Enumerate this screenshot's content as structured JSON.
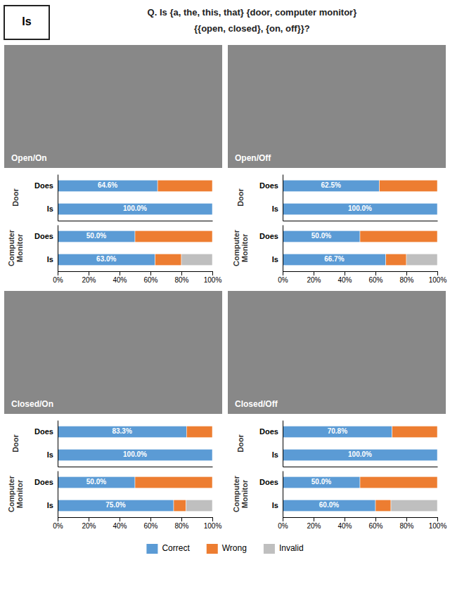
{
  "chart_data": [
    {
      "type": "bar",
      "orientation": "horizontal",
      "stacked": true,
      "data_labels": true,
      "tick_labels": "y",
      "title": "Q. Is {a, the, this, that} {door, computer monitor}\n{{open, closed}, {on, off}}?",
      "subtitle": "Is",
      "annotations": [
        "Open/On"
      ],
      "legend": "bottom",
      "y_label": "Door",
      "categories": [
        "Is",
        "Does"
      ],
      "series": [
        {
          "name": "Correct",
          "color": "#5B9BD5",
          "values": [
            100.0,
            64.6
          ],
          "value_labels": [
            "100.0%",
            "64.6%"
          ]
        },
        {
          "name": "Wrong",
          "color": "#ED7D31",
          "values": [
            0.0,
            35.4
          ]
        },
        {
          "name": "Invalid",
          "color": "#BFBFBF",
          "values": [
            0.0,
            0.0
          ]
        }
      ],
      "xlim": [
        0,
        100
      ]
    },
    {
      "type": "bar",
      "orientation": "horizontal",
      "stacked": true,
      "data_labels": true,
      "y_label": "Computer\nMonitor",
      "categories": [
        "Is",
        "Does"
      ],
      "series": [
        {
          "name": "Correct",
          "color": "#5B9BD5",
          "values": [
            63.0,
            50.0
          ],
          "value_labels": [
            "63.0%",
            "50.0%"
          ]
        },
        {
          "name": "Wrong",
          "color": "#ED7D31",
          "values": [
            17.0,
            50.0
          ]
        },
        {
          "name": "Invalid",
          "color": "#BFBFBF",
          "values": [
            20.0,
            0.0
          ]
        }
      ],
      "xlim": [
        0,
        100
      ],
      "xticks": [
        {
          "value": 0,
          "label": "0%"
        },
        {
          "value": 20,
          "label": "20%"
        },
        {
          "value": 40,
          "label": "40%"
        },
        {
          "value": 60,
          "label": "60%"
        },
        {
          "value": 80,
          "label": "80%"
        },
        {
          "value": 100,
          "label": "100%"
        }
      ]
    },
    {
      "type": "bar",
      "orientation": "horizontal",
      "stacked": true,
      "data_labels": true,
      "tick_labels": "y",
      "annotations": [
        "Open/Off"
      ],
      "y_label": "Door",
      "categories": [
        "Is",
        "Does"
      ],
      "series": [
        {
          "name": "Correct",
          "color": "#5B9BD5",
          "values": [
            100.0,
            62.5
          ],
          "value_labels": [
            "100.0%",
            "62.5%"
          ]
        },
        {
          "name": "Wrong",
          "color": "#ED7D31",
          "values": [
            0.0,
            37.5
          ]
        },
        {
          "name": "Invalid",
          "color": "#BFBFBF",
          "values": [
            0.0,
            0.0
          ]
        }
      ],
      "xlim": [
        0,
        100
      ]
    },
    {
      "type": "bar",
      "orientation": "horizontal",
      "stacked": true,
      "data_labels": true,
      "y_label": "Computer\nMonitor",
      "categories": [
        "Is",
        "Does"
      ],
      "series": [
        {
          "name": "Correct",
          "color": "#5B9BD5",
          "values": [
            66.7,
            50.0
          ],
          "value_labels": [
            "66.7%",
            "50.0%"
          ]
        },
        {
          "name": "Wrong",
          "color": "#ED7D31",
          "values": [
            13.3,
            50.0
          ]
        },
        {
          "name": "Invalid",
          "color": "#BFBFBF",
          "values": [
            20.0,
            0.0
          ]
        }
      ],
      "xlim": [
        0,
        100
      ],
      "xticks": [
        {
          "value": 0,
          "label": "0%"
        },
        {
          "value": 20,
          "label": "20%"
        },
        {
          "value": 40,
          "label": "40%"
        },
        {
          "value": 60,
          "label": "60%"
        },
        {
          "value": 80,
          "label": "80%"
        },
        {
          "value": 100,
          "label": "100%"
        }
      ]
    },
    {
      "type": "bar",
      "orientation": "horizontal",
      "stacked": true,
      "data_labels": true,
      "tick_labels": "y",
      "annotations": [
        "Closed/On"
      ],
      "y_label": "Door",
      "categories": [
        "Is",
        "Does"
      ],
      "series": [
        {
          "name": "Correct",
          "color": "#5B9BD5",
          "values": [
            100.0,
            83.3
          ],
          "value_labels": [
            "100.0%",
            "83.3%"
          ]
        },
        {
          "name": "Wrong",
          "color": "#ED7D31",
          "values": [
            0.0,
            16.7
          ]
        },
        {
          "name": "Invalid",
          "color": "#BFBFBF",
          "values": [
            0.0,
            0.0
          ]
        }
      ],
      "xlim": [
        0,
        100
      ]
    },
    {
      "type": "bar",
      "orientation": "horizontal",
      "stacked": true,
      "data_labels": true,
      "y_label": "Computer\nMonitor",
      "categories": [
        "Is",
        "Does"
      ],
      "series": [
        {
          "name": "Correct",
          "color": "#5B9BD5",
          "values": [
            75.0,
            50.0
          ],
          "value_labels": [
            "75.0%",
            "50.0%"
          ]
        },
        {
          "name": "Wrong",
          "color": "#ED7D31",
          "values": [
            8.0,
            50.0
          ]
        },
        {
          "name": "Invalid",
          "color": "#BFBFBF",
          "values": [
            17.0,
            0.0
          ]
        }
      ],
      "xlim": [
        0,
        100
      ],
      "xticks": [
        {
          "value": 0,
          "label": "0%"
        },
        {
          "value": 20,
          "label": "20%"
        },
        {
          "value": 40,
          "label": "40%"
        },
        {
          "value": 60,
          "label": "60%"
        },
        {
          "value": 80,
          "label": "80%"
        },
        {
          "value": 100,
          "label": "100%"
        }
      ]
    },
    {
      "type": "bar",
      "orientation": "horizontal",
      "stacked": true,
      "data_labels": true,
      "tick_labels": "y",
      "annotations": [
        "Closed/Off"
      ],
      "y_label": "Door",
      "categories": [
        "Is",
        "Does"
      ],
      "series": [
        {
          "name": "Correct",
          "color": "#5B9BD5",
          "values": [
            100.0,
            70.8
          ],
          "value_labels": [
            "100.0%",
            "70.8%"
          ]
        },
        {
          "name": "Wrong",
          "color": "#ED7D31",
          "values": [
            0.0,
            29.2
          ]
        },
        {
          "name": "Invalid",
          "color": "#BFBFBF",
          "values": [
            0.0,
            0.0
          ]
        }
      ],
      "xlim": [
        0,
        100
      ]
    },
    {
      "type": "bar",
      "orientation": "horizontal",
      "stacked": true,
      "data_labels": true,
      "y_label": "Computer\nMonitor",
      "categories": [
        "Is",
        "Does"
      ],
      "series": [
        {
          "name": "Correct",
          "color": "#5B9BD5",
          "values": [
            60.0,
            50.0
          ],
          "value_labels": [
            "60.0%",
            "50.0%"
          ]
        },
        {
          "name": "Wrong",
          "color": "#ED7D31",
          "values": [
            10.0,
            50.0
          ]
        },
        {
          "name": "Invalid",
          "color": "#BFBFBF",
          "values": [
            30.0,
            0.0
          ]
        }
      ],
      "xlim": [
        0,
        100
      ],
      "xticks": [
        {
          "value": 0,
          "label": "0%"
        },
        {
          "value": 20,
          "label": "20%"
        },
        {
          "value": 40,
          "label": "40%"
        },
        {
          "value": 60,
          "label": "60%"
        },
        {
          "value": 80,
          "label": "80%"
        },
        {
          "value": 100,
          "label": "100%"
        }
      ]
    }
  ]
}
